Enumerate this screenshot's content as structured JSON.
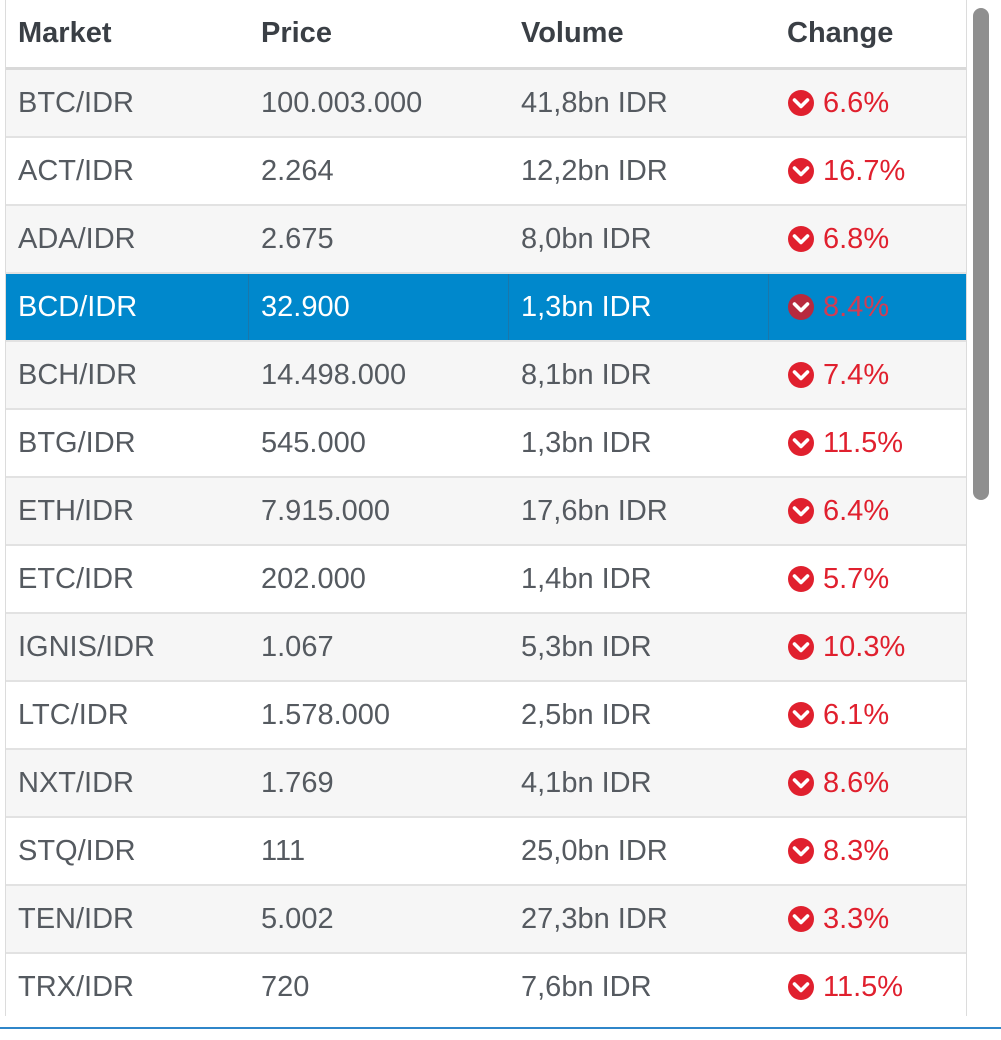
{
  "columns": {
    "market": "Market",
    "price": "Price",
    "volume": "Volume",
    "change": "Change"
  },
  "rows": [
    {
      "market": "BTC/IDR",
      "price": "100.003.000",
      "volume": "41,8bn IDR",
      "change": "6.6%",
      "direction": "down"
    },
    {
      "market": "ACT/IDR",
      "price": "2.264",
      "volume": "12,2bn IDR",
      "change": "16.7%",
      "direction": "down"
    },
    {
      "market": "ADA/IDR",
      "price": "2.675",
      "volume": "8,0bn IDR",
      "change": "6.8%",
      "direction": "down"
    },
    {
      "market": "BCD/IDR",
      "price": "32.900",
      "volume": "1,3bn IDR",
      "change": "8.4%",
      "direction": "down",
      "selected": true
    },
    {
      "market": "BCH/IDR",
      "price": "14.498.000",
      "volume": "8,1bn IDR",
      "change": "7.4%",
      "direction": "down"
    },
    {
      "market": "BTG/IDR",
      "price": "545.000",
      "volume": "1,3bn IDR",
      "change": "11.5%",
      "direction": "down"
    },
    {
      "market": "ETH/IDR",
      "price": "7.915.000",
      "volume": "17,6bn IDR",
      "change": "6.4%",
      "direction": "down"
    },
    {
      "market": "ETC/IDR",
      "price": "202.000",
      "volume": "1,4bn IDR",
      "change": "5.7%",
      "direction": "down"
    },
    {
      "market": "IGNIS/IDR",
      "price": "1.067",
      "volume": "5,3bn IDR",
      "change": "10.3%",
      "direction": "down"
    },
    {
      "market": "LTC/IDR",
      "price": "1.578.000",
      "volume": "2,5bn IDR",
      "change": "6.1%",
      "direction": "down"
    },
    {
      "market": "NXT/IDR",
      "price": "1.769",
      "volume": "4,1bn IDR",
      "change": "8.6%",
      "direction": "down"
    },
    {
      "market": "STQ/IDR",
      "price": "111",
      "volume": "25,0bn IDR",
      "change": "8.3%",
      "direction": "down"
    },
    {
      "market": "TEN/IDR",
      "price": "5.002",
      "volume": "27,3bn IDR",
      "change": "3.3%",
      "direction": "down"
    },
    {
      "market": "TRX/IDR",
      "price": "720",
      "volume": "7,6bn IDR",
      "change": "11.5%",
      "direction": "down"
    }
  ],
  "colors": {
    "selected_row": "#0088cc",
    "change_down": "#e0202e",
    "accent_line": "#2f86c9"
  },
  "icons": {
    "change_down": "chevron-down-circle-icon"
  }
}
